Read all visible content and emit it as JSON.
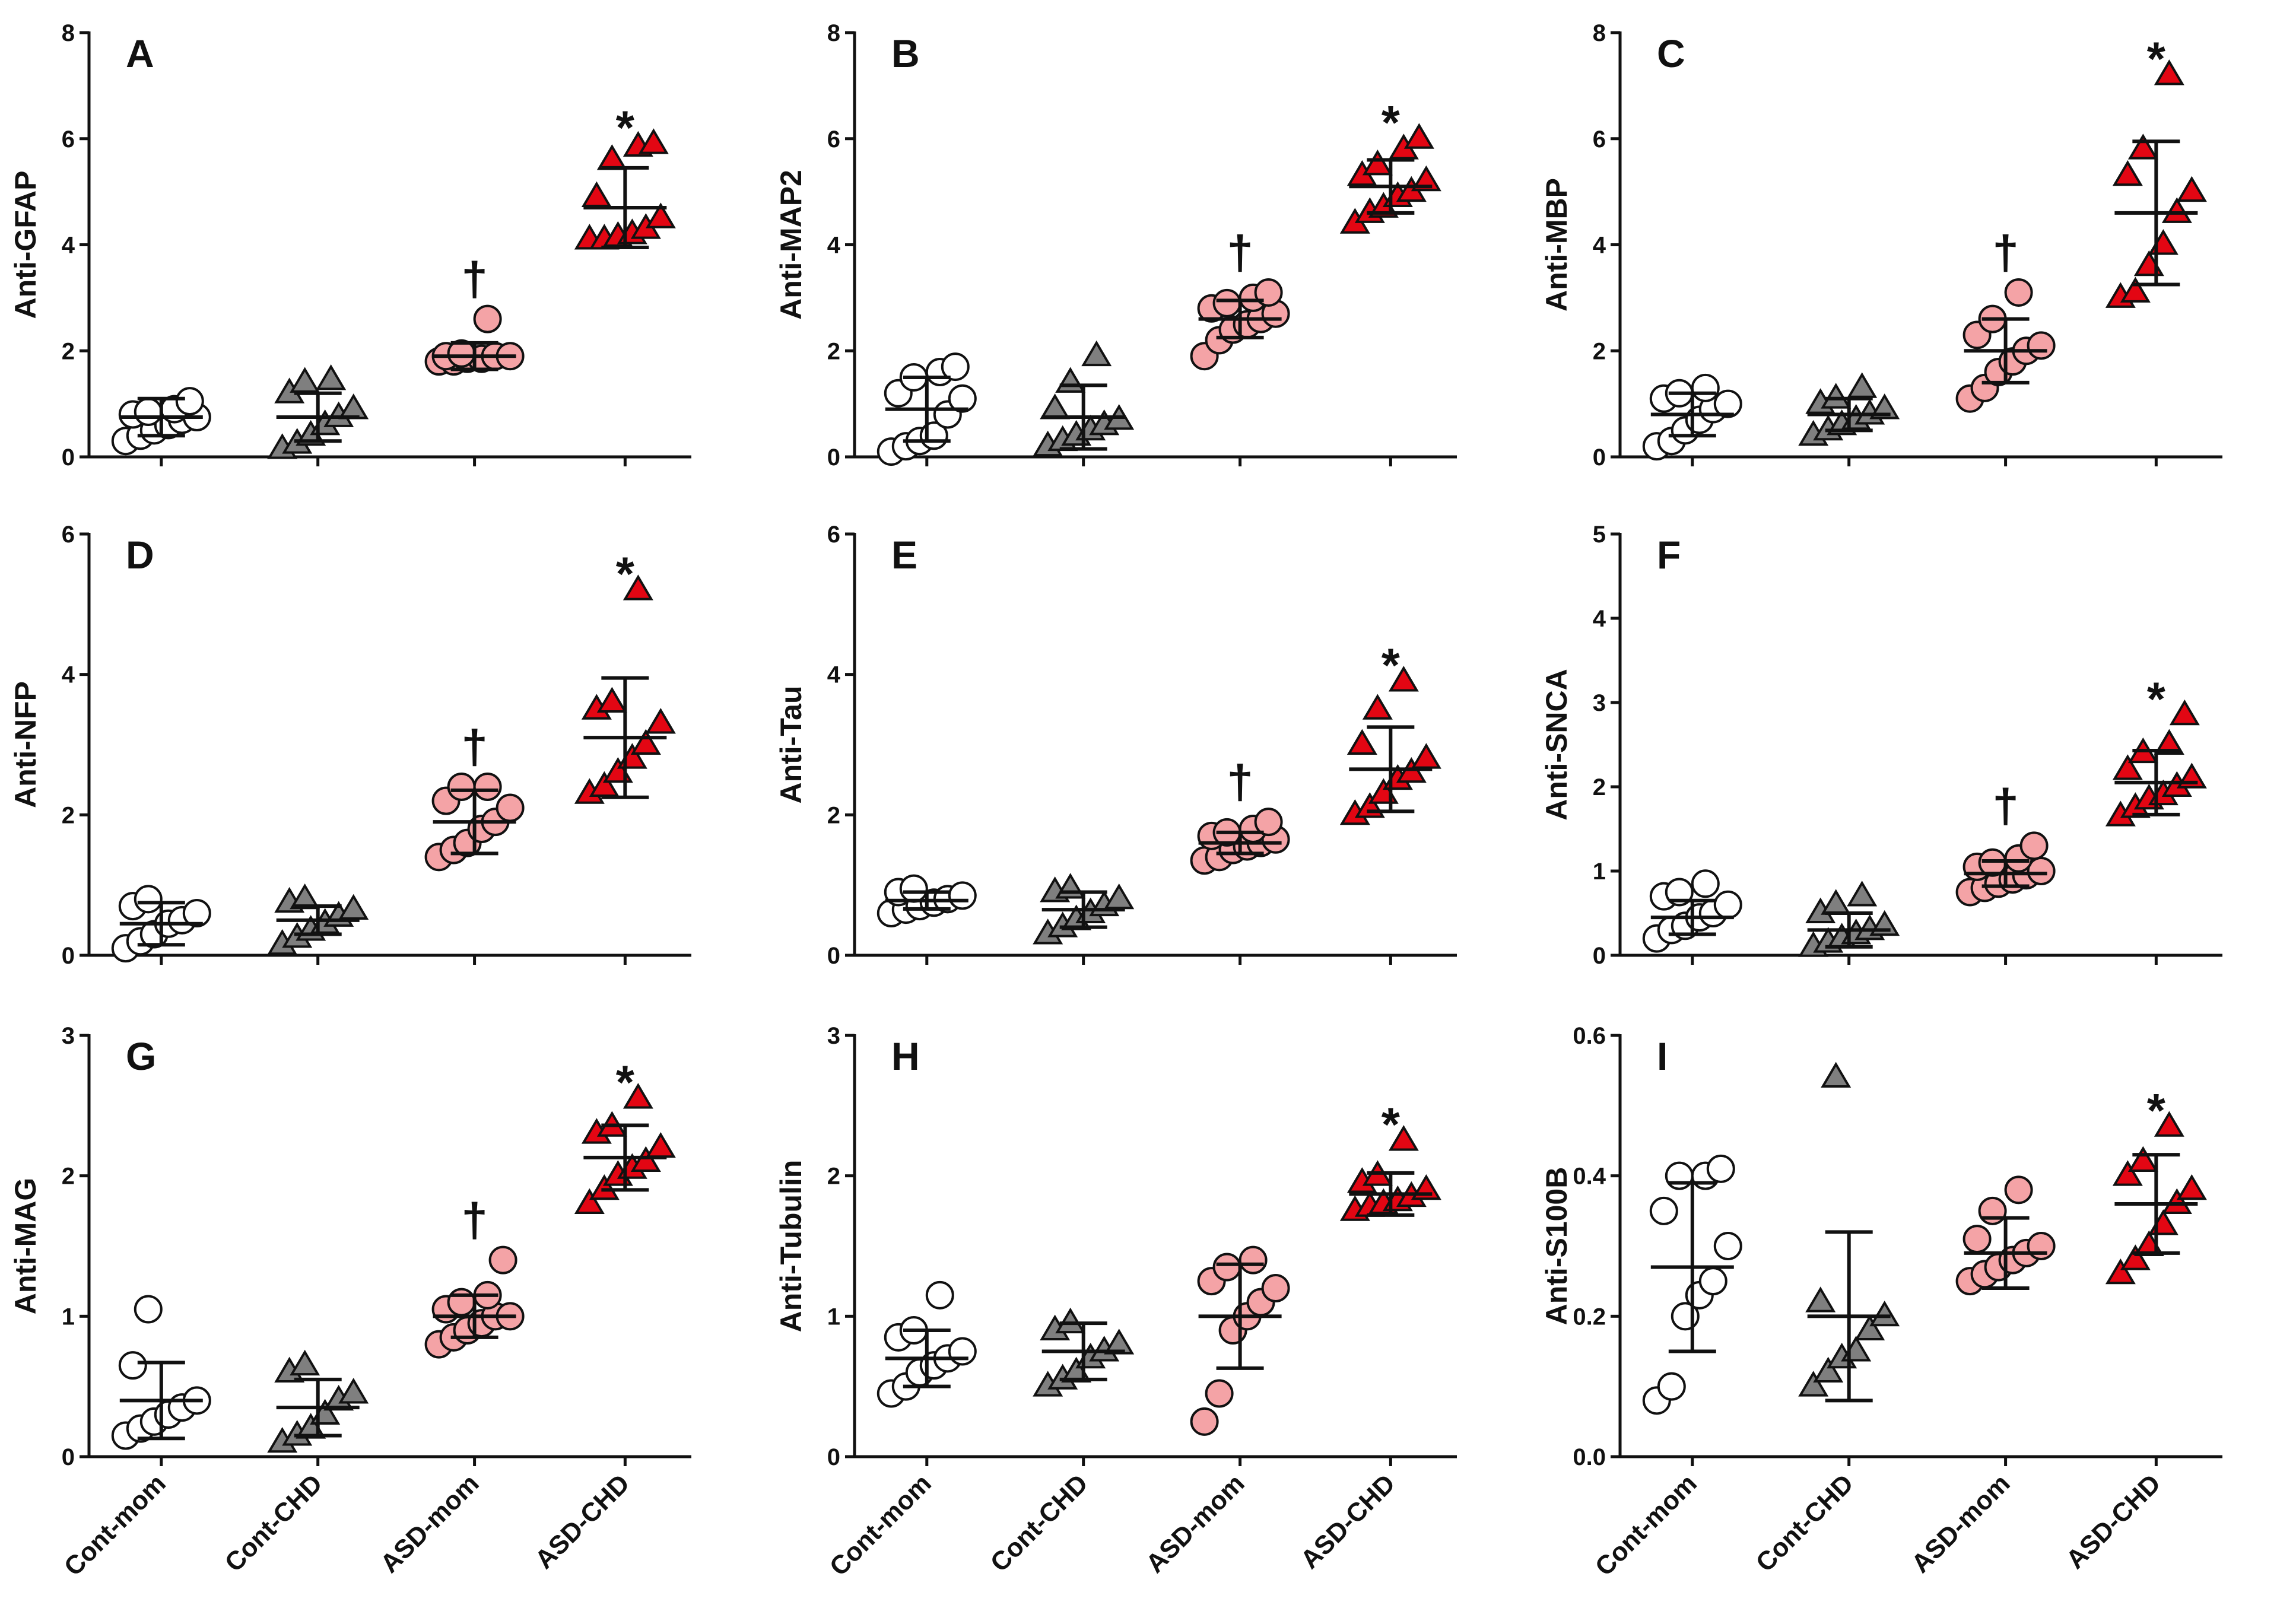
{
  "figure": {
    "groups": [
      "Cont-mom",
      "Cont-CHD",
      "ASD-mom",
      "ASD-CHD"
    ],
    "colors": {
      "Cont-mom": "#ffffff",
      "Cont-CHD": "#7f7f7f",
      "ASD-mom": "#f4a3a6",
      "ASD-CHD": "#e30613",
      "outline": "#111111"
    },
    "markers": {
      "Cont-mom": "circle",
      "Cont-CHD": "triangle",
      "ASD-mom": "circle",
      "ASD-CHD": "triangle"
    }
  },
  "chart_data": [
    {
      "type": "scatter",
      "panel": "A",
      "ylabel": "Anti-GFAP",
      "ylim": [
        0,
        8
      ],
      "yticks": [
        "0",
        "2",
        "4",
        "6",
        "8"
      ],
      "series": [
        {
          "name": "Cont-mom",
          "values": [
            0.3,
            0.4,
            0.5,
            0.6,
            0.7,
            0.75,
            0.8,
            0.85,
            0.9,
            1.05
          ],
          "mean": 0.75,
          "sd": 0.35,
          "sig": ""
        },
        {
          "name": "Cont-CHD",
          "values": [
            0.15,
            0.25,
            0.4,
            0.6,
            0.75,
            0.9,
            1.2,
            1.4,
            1.45
          ],
          "mean": 0.75,
          "sd": 0.45,
          "sig": ""
        },
        {
          "name": "ASD-mom",
          "values": [
            1.8,
            1.8,
            1.85,
            1.85,
            1.9,
            1.9,
            1.9,
            1.95,
            2.6
          ],
          "mean": 1.9,
          "sd": 0.25,
          "sig": "†"
        },
        {
          "name": "ASD-CHD",
          "values": [
            4.1,
            4.1,
            4.15,
            4.2,
            4.3,
            4.5,
            4.9,
            5.6,
            5.85,
            5.9
          ],
          "mean": 4.7,
          "sd": 0.75,
          "sig": "*"
        }
      ]
    },
    {
      "type": "scatter",
      "panel": "B",
      "ylabel": "Anti-MAP2",
      "ylim": [
        0,
        8
      ],
      "yticks": [
        "0",
        "2",
        "4",
        "6",
        "8"
      ],
      "series": [
        {
          "name": "Cont-mom",
          "values": [
            0.1,
            0.2,
            0.3,
            0.4,
            0.8,
            1.1,
            1.2,
            1.5,
            1.6,
            1.7
          ],
          "mean": 0.9,
          "sd": 0.6,
          "sig": ""
        },
        {
          "name": "Cont-CHD",
          "values": [
            0.2,
            0.3,
            0.4,
            0.5,
            0.6,
            0.7,
            0.9,
            1.4,
            1.9
          ],
          "mean": 0.75,
          "sd": 0.6,
          "sig": ""
        },
        {
          "name": "ASD-mom",
          "values": [
            1.9,
            2.2,
            2.4,
            2.5,
            2.6,
            2.7,
            2.8,
            2.9,
            3.0,
            3.1
          ],
          "mean": 2.6,
          "sd": 0.35,
          "sig": "†"
        },
        {
          "name": "ASD-CHD",
          "values": [
            4.4,
            4.6,
            4.7,
            4.9,
            5.0,
            5.2,
            5.3,
            5.5,
            5.8,
            6.0
          ],
          "mean": 5.1,
          "sd": 0.5,
          "sig": "*"
        }
      ]
    },
    {
      "type": "scatter",
      "panel": "C",
      "ylabel": "Anti-MBP",
      "ylim": [
        0,
        8
      ],
      "yticks": [
        "0",
        "2",
        "4",
        "6",
        "8"
      ],
      "series": [
        {
          "name": "Cont-mom",
          "values": [
            0.2,
            0.3,
            0.5,
            0.7,
            0.9,
            1.0,
            1.1,
            1.2,
            1.3
          ],
          "mean": 0.8,
          "sd": 0.4,
          "sig": ""
        },
        {
          "name": "Cont-CHD",
          "values": [
            0.4,
            0.5,
            0.6,
            0.7,
            0.8,
            0.9,
            1.0,
            1.1,
            1.3
          ],
          "mean": 0.8,
          "sd": 0.3,
          "sig": ""
        },
        {
          "name": "ASD-mom",
          "values": [
            1.1,
            1.3,
            1.6,
            1.8,
            2.0,
            2.1,
            2.3,
            2.6,
            3.1
          ],
          "mean": 2.0,
          "sd": 0.6,
          "sig": "†"
        },
        {
          "name": "ASD-CHD",
          "values": [
            3.0,
            3.1,
            3.6,
            4.0,
            4.6,
            5.0,
            5.3,
            5.8,
            7.2
          ],
          "mean": 4.6,
          "sd": 1.35,
          "sig": "*"
        }
      ]
    },
    {
      "type": "scatter",
      "panel": "D",
      "ylabel": "Anti-NFP",
      "ylim": [
        0,
        6
      ],
      "yticks": [
        "0",
        "2",
        "4",
        "6"
      ],
      "series": [
        {
          "name": "Cont-mom",
          "values": [
            0.1,
            0.2,
            0.3,
            0.45,
            0.5,
            0.6,
            0.7,
            0.8
          ],
          "mean": 0.45,
          "sd": 0.3,
          "sig": ""
        },
        {
          "name": "Cont-CHD",
          "values": [
            0.15,
            0.25,
            0.35,
            0.45,
            0.55,
            0.65,
            0.75,
            0.8
          ],
          "mean": 0.5,
          "sd": 0.2,
          "sig": ""
        },
        {
          "name": "ASD-mom",
          "values": [
            1.4,
            1.5,
            1.6,
            1.8,
            1.9,
            2.1,
            2.2,
            2.4,
            2.4
          ],
          "mean": 1.9,
          "sd": 0.45,
          "sig": "†"
        },
        {
          "name": "ASD-CHD",
          "values": [
            2.3,
            2.4,
            2.6,
            2.8,
            3.0,
            3.3,
            3.5,
            3.6,
            5.2
          ],
          "mean": 3.1,
          "sd": 0.85,
          "sig": "*"
        }
      ]
    },
    {
      "type": "scatter",
      "panel": "E",
      "ylabel": "Anti-Tau",
      "ylim": [
        0,
        6
      ],
      "yticks": [
        "0",
        "2",
        "4",
        "6"
      ],
      "series": [
        {
          "name": "Cont-mom",
          "values": [
            0.6,
            0.65,
            0.7,
            0.75,
            0.8,
            0.85,
            0.9,
            0.95
          ],
          "mean": 0.78,
          "sd": 0.12,
          "sig": ""
        },
        {
          "name": "Cont-CHD",
          "values": [
            0.3,
            0.4,
            0.5,
            0.6,
            0.7,
            0.8,
            0.9,
            0.95
          ],
          "mean": 0.65,
          "sd": 0.25,
          "sig": ""
        },
        {
          "name": "ASD-mom",
          "values": [
            1.35,
            1.4,
            1.5,
            1.55,
            1.6,
            1.65,
            1.7,
            1.75,
            1.8,
            1.9
          ],
          "mean": 1.6,
          "sd": 0.15,
          "sig": "†"
        },
        {
          "name": "ASD-CHD",
          "values": [
            2.0,
            2.1,
            2.3,
            2.5,
            2.6,
            2.8,
            3.0,
            3.5,
            3.9
          ],
          "mean": 2.65,
          "sd": 0.6,
          "sig": "*"
        }
      ]
    },
    {
      "type": "scatter",
      "panel": "F",
      "ylabel": "Anti-SNCA",
      "ylim": [
        0,
        5
      ],
      "yticks": [
        "0",
        "1",
        "2",
        "3",
        "4",
        "5"
      ],
      "series": [
        {
          "name": "Cont-mom",
          "values": [
            0.2,
            0.3,
            0.35,
            0.45,
            0.5,
            0.6,
            0.7,
            0.75,
            0.85
          ],
          "mean": 0.45,
          "sd": 0.2,
          "sig": ""
        },
        {
          "name": "Cont-CHD",
          "values": [
            0.1,
            0.15,
            0.2,
            0.25,
            0.3,
            0.35,
            0.5,
            0.6,
            0.7
          ],
          "mean": 0.3,
          "sd": 0.2,
          "sig": ""
        },
        {
          "name": "ASD-mom",
          "values": [
            0.75,
            0.8,
            0.85,
            0.9,
            0.95,
            1.0,
            1.05,
            1.1,
            1.15,
            1.3
          ],
          "mean": 0.97,
          "sd": 0.15,
          "sig": "†"
        },
        {
          "name": "ASD-CHD",
          "values": [
            1.65,
            1.75,
            1.85,
            1.9,
            2.0,
            2.1,
            2.2,
            2.4,
            2.5,
            2.85
          ],
          "mean": 2.05,
          "sd": 0.38,
          "sig": "*"
        }
      ]
    },
    {
      "type": "scatter",
      "panel": "G",
      "ylabel": "Anti-MAG",
      "ylim": [
        0,
        3
      ],
      "yticks": [
        "0",
        "1",
        "2",
        "3"
      ],
      "series": [
        {
          "name": "Cont-mom",
          "values": [
            0.15,
            0.2,
            0.25,
            0.3,
            0.35,
            0.4,
            0.65,
            1.05
          ],
          "mean": 0.4,
          "sd": 0.27,
          "sig": ""
        },
        {
          "name": "Cont-CHD",
          "values": [
            0.1,
            0.15,
            0.2,
            0.3,
            0.4,
            0.45,
            0.6,
            0.65
          ],
          "mean": 0.35,
          "sd": 0.2,
          "sig": ""
        },
        {
          "name": "ASD-mom",
          "values": [
            0.8,
            0.85,
            0.9,
            0.95,
            1.0,
            1.0,
            1.05,
            1.1,
            1.15,
            1.4
          ],
          "mean": 1.0,
          "sd": 0.15,
          "sig": "†"
        },
        {
          "name": "ASD-CHD",
          "values": [
            1.8,
            1.9,
            2.0,
            2.05,
            2.1,
            2.2,
            2.3,
            2.35,
            2.55
          ],
          "mean": 2.13,
          "sd": 0.23,
          "sig": "*"
        }
      ]
    },
    {
      "type": "scatter",
      "panel": "H",
      "ylabel": "Anti-Tubulin",
      "ylim": [
        0,
        3
      ],
      "yticks": [
        "0",
        "1",
        "2",
        "3"
      ],
      "series": [
        {
          "name": "Cont-mom",
          "values": [
            0.45,
            0.5,
            0.6,
            0.65,
            0.7,
            0.75,
            0.85,
            0.9,
            1.15
          ],
          "mean": 0.7,
          "sd": 0.2,
          "sig": ""
        },
        {
          "name": "Cont-CHD",
          "values": [
            0.5,
            0.55,
            0.6,
            0.7,
            0.75,
            0.8,
            0.9,
            0.95
          ],
          "mean": 0.75,
          "sd": 0.2,
          "sig": ""
        },
        {
          "name": "ASD-mom",
          "values": [
            0.25,
            0.45,
            0.9,
            1.0,
            1.1,
            1.2,
            1.25,
            1.35,
            1.4
          ],
          "mean": 1.0,
          "sd": 0.37,
          "sig": ""
        },
        {
          "name": "ASD-CHD",
          "values": [
            1.75,
            1.78,
            1.8,
            1.82,
            1.85,
            1.9,
            1.95,
            2.0,
            2.25
          ],
          "mean": 1.87,
          "sd": 0.15,
          "sig": "*"
        }
      ]
    },
    {
      "type": "scatter",
      "panel": "I",
      "ylabel": "Anti-S100B",
      "ylim": [
        0,
        0.6
      ],
      "yticks": [
        "0.0",
        "0.2",
        "0.4",
        "0.6"
      ],
      "series": [
        {
          "name": "Cont-mom",
          "values": [
            0.08,
            0.1,
            0.2,
            0.23,
            0.25,
            0.3,
            0.35,
            0.4,
            0.4,
            0.41
          ],
          "mean": 0.27,
          "sd": 0.12,
          "sig": ""
        },
        {
          "name": "Cont-CHD",
          "values": [
            0.1,
            0.12,
            0.14,
            0.15,
            0.18,
            0.2,
            0.22,
            0.54
          ],
          "mean": 0.2,
          "sd": 0.12,
          "sig": ""
        },
        {
          "name": "ASD-mom",
          "values": [
            0.25,
            0.26,
            0.27,
            0.28,
            0.29,
            0.3,
            0.31,
            0.35,
            0.38
          ],
          "mean": 0.29,
          "sd": 0.05,
          "sig": ""
        },
        {
          "name": "ASD-CHD",
          "values": [
            0.26,
            0.28,
            0.3,
            0.33,
            0.36,
            0.38,
            0.4,
            0.42,
            0.47
          ],
          "mean": 0.36,
          "sd": 0.07,
          "sig": "*"
        }
      ]
    }
  ]
}
